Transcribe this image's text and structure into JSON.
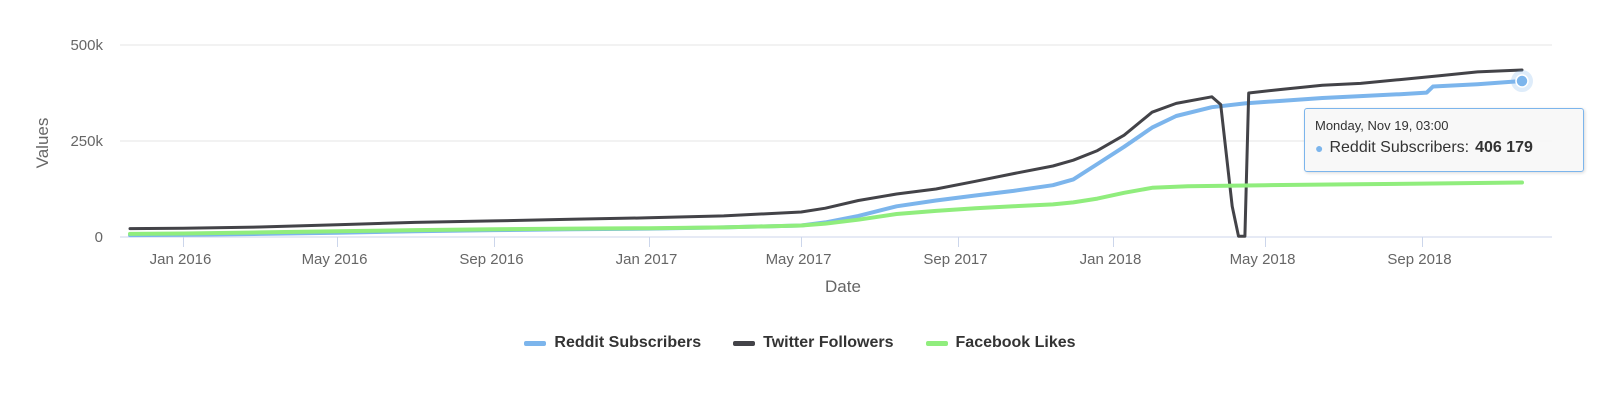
{
  "chart_data": {
    "type": "line",
    "title": "",
    "xlabel": "Date",
    "ylabel": "Values",
    "ylim": [
      0,
      500000
    ],
    "xlim": [
      "2015-11-20",
      "2018-11-19"
    ],
    "y_ticks": [
      {
        "value": 0,
        "label": "0"
      },
      {
        "value": 250000,
        "label": "250k"
      },
      {
        "value": 500000,
        "label": "500k"
      }
    ],
    "x_ticks": [
      {
        "date": "2016-01-01",
        "label": "Jan 2016"
      },
      {
        "date": "2016-05-01",
        "label": "May 2016"
      },
      {
        "date": "2016-09-01",
        "label": "Sep 2016"
      },
      {
        "date": "2017-01-01",
        "label": "Jan 2017"
      },
      {
        "date": "2017-05-01",
        "label": "May 2017"
      },
      {
        "date": "2017-09-01",
        "label": "Sep 2017"
      },
      {
        "date": "2018-01-01",
        "label": "Jan 2018"
      },
      {
        "date": "2018-05-01",
        "label": "May 2018"
      },
      {
        "date": "2018-09-01",
        "label": "Sep 2018"
      }
    ],
    "series": [
      {
        "name": "Reddit Subscribers",
        "color": "#7cb5ec",
        "points": [
          [
            "2015-11-20",
            5000
          ],
          [
            "2016-01-01",
            6000
          ],
          [
            "2016-03-01",
            8000
          ],
          [
            "2016-05-01",
            11000
          ],
          [
            "2016-07-01",
            15000
          ],
          [
            "2016-09-01",
            18000
          ],
          [
            "2016-11-01",
            20000
          ],
          [
            "2017-01-01",
            22000
          ],
          [
            "2017-03-01",
            25000
          ],
          [
            "2017-05-01",
            30000
          ],
          [
            "2017-05-20",
            38000
          ],
          [
            "2017-06-15",
            55000
          ],
          [
            "2017-07-15",
            80000
          ],
          [
            "2017-08-15",
            95000
          ],
          [
            "2017-09-15",
            108000
          ],
          [
            "2017-10-15",
            120000
          ],
          [
            "2017-11-15",
            135000
          ],
          [
            "2017-12-01",
            150000
          ],
          [
            "2017-12-20",
            190000
          ],
          [
            "2018-01-10",
            235000
          ],
          [
            "2018-02-01",
            285000
          ],
          [
            "2018-02-20",
            315000
          ],
          [
            "2018-03-20",
            338000
          ],
          [
            "2018-04-15",
            348000
          ],
          [
            "2018-05-15",
            355000
          ],
          [
            "2018-06-15",
            362000
          ],
          [
            "2018-07-15",
            367000
          ],
          [
            "2018-08-15",
            372000
          ],
          [
            "2018-09-05",
            376000
          ],
          [
            "2018-09-10",
            392000
          ],
          [
            "2018-10-15",
            398000
          ],
          [
            "2018-11-19",
            406179
          ]
        ]
      },
      {
        "name": "Twitter Followers",
        "color": "#434348",
        "points": [
          [
            "2015-11-20",
            22000
          ],
          [
            "2016-01-01",
            23000
          ],
          [
            "2016-03-01",
            26000
          ],
          [
            "2016-05-01",
            32000
          ],
          [
            "2016-07-01",
            38000
          ],
          [
            "2016-09-01",
            42000
          ],
          [
            "2016-11-01",
            46000
          ],
          [
            "2017-01-01",
            50000
          ],
          [
            "2017-03-01",
            55000
          ],
          [
            "2017-05-01",
            65000
          ],
          [
            "2017-05-20",
            75000
          ],
          [
            "2017-06-15",
            95000
          ],
          [
            "2017-07-15",
            112000
          ],
          [
            "2017-08-15",
            125000
          ],
          [
            "2017-09-15",
            145000
          ],
          [
            "2017-10-15",
            165000
          ],
          [
            "2017-11-15",
            185000
          ],
          [
            "2017-12-01",
            200000
          ],
          [
            "2017-12-20",
            225000
          ],
          [
            "2018-01-10",
            265000
          ],
          [
            "2018-02-01",
            325000
          ],
          [
            "2018-02-20",
            348000
          ],
          [
            "2018-03-20",
            365000
          ],
          [
            "2018-03-27",
            345000
          ],
          [
            "2018-04-05",
            80000
          ],
          [
            "2018-04-10",
            2000
          ],
          [
            "2018-04-15",
            2000
          ],
          [
            "2018-04-18",
            375000
          ],
          [
            "2018-05-15",
            385000
          ],
          [
            "2018-06-15",
            395000
          ],
          [
            "2018-07-15",
            400000
          ],
          [
            "2018-08-15",
            410000
          ],
          [
            "2018-09-15",
            420000
          ],
          [
            "2018-10-15",
            430000
          ],
          [
            "2018-11-19",
            435000
          ]
        ]
      },
      {
        "name": "Facebook Likes",
        "color": "#90ed7d",
        "points": [
          [
            "2015-11-20",
            8000
          ],
          [
            "2016-01-01",
            9000
          ],
          [
            "2016-03-01",
            12000
          ],
          [
            "2016-05-01",
            15000
          ],
          [
            "2016-07-01",
            18000
          ],
          [
            "2016-09-01",
            20000
          ],
          [
            "2016-11-01",
            22000
          ],
          [
            "2017-01-01",
            23000
          ],
          [
            "2017-03-01",
            25000
          ],
          [
            "2017-05-01",
            30000
          ],
          [
            "2017-05-20",
            35000
          ],
          [
            "2017-06-15",
            45000
          ],
          [
            "2017-07-15",
            60000
          ],
          [
            "2017-08-15",
            68000
          ],
          [
            "2017-09-15",
            75000
          ],
          [
            "2017-10-15",
            80000
          ],
          [
            "2017-11-15",
            85000
          ],
          [
            "2017-12-01",
            90000
          ],
          [
            "2017-12-20",
            100000
          ],
          [
            "2018-01-10",
            115000
          ],
          [
            "2018-02-01",
            128000
          ],
          [
            "2018-03-01",
            132000
          ],
          [
            "2018-05-01",
            135000
          ],
          [
            "2018-07-01",
            137000
          ],
          [
            "2018-09-01",
            139000
          ],
          [
            "2018-11-19",
            142000
          ]
        ]
      }
    ],
    "legend": [
      "Reddit Subscribers",
      "Twitter Followers",
      "Facebook Likes"
    ],
    "tooltip": {
      "header": "Monday, Nov 19, 03:00",
      "series": "Reddit Subscribers",
      "value": "406 179",
      "date": "2018-11-19",
      "y": 406179
    }
  },
  "colors": {
    "gridline": "#e6e6e6",
    "axis_line": "#ccd6eb",
    "tooltip_border": "#7cb5ec"
  }
}
